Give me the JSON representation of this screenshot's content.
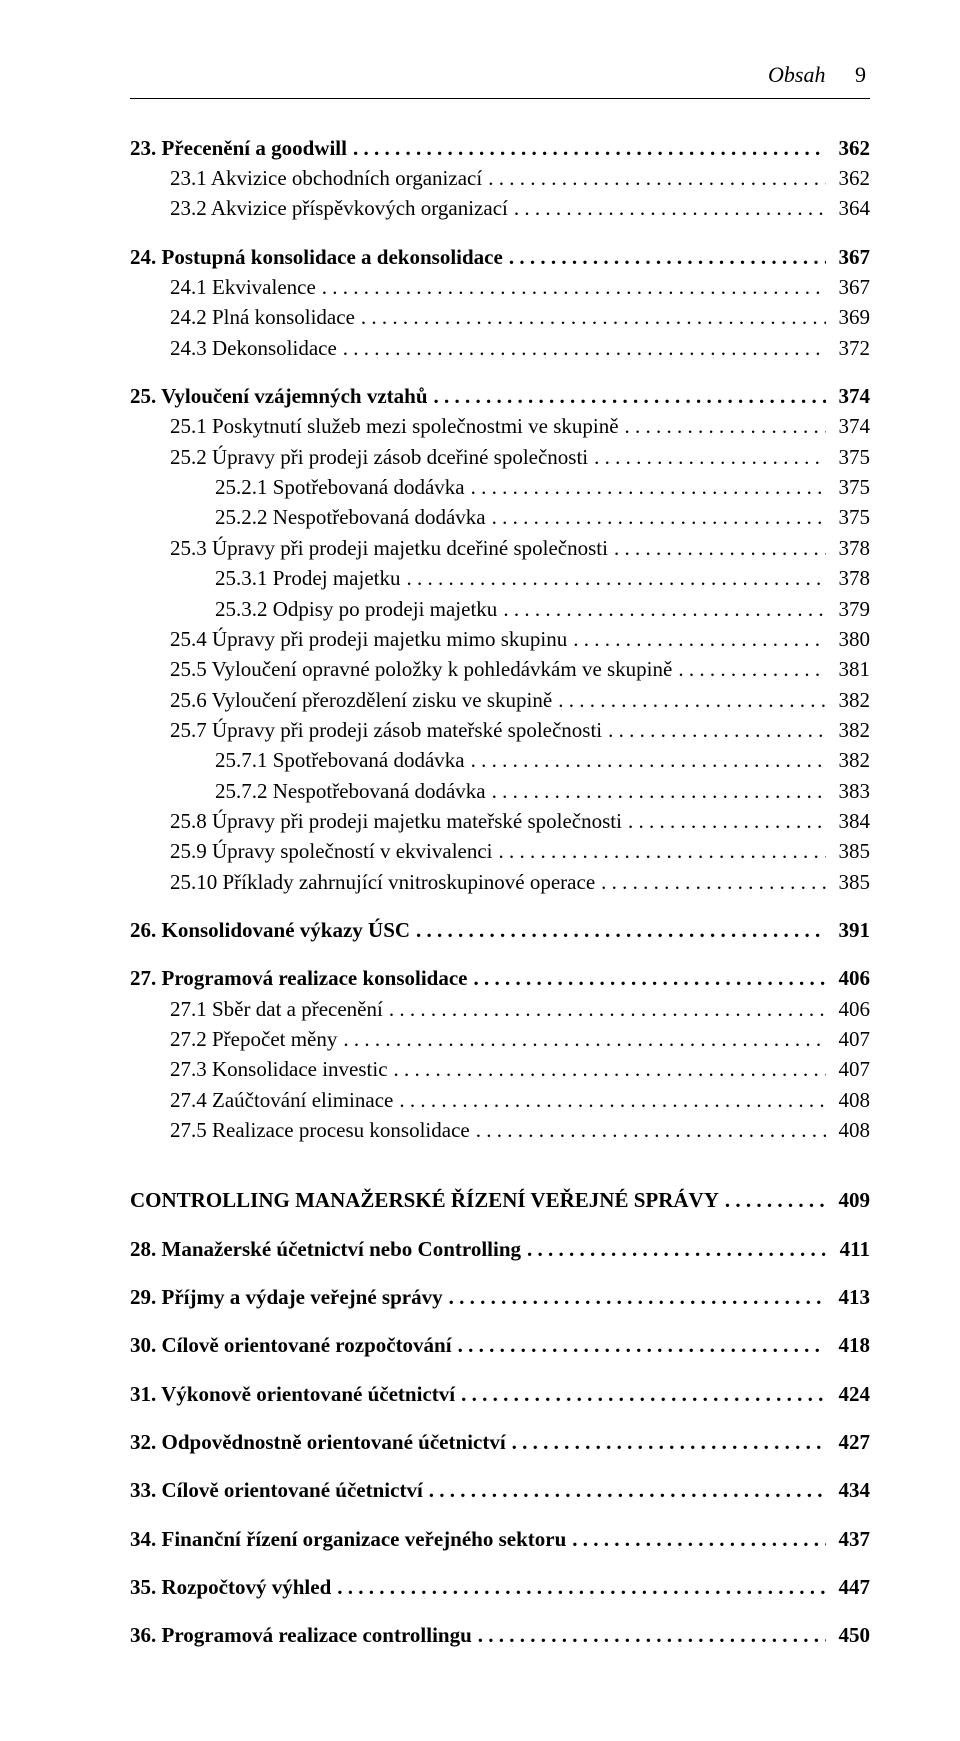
{
  "running_head": {
    "title": "Obsah",
    "page": "9"
  },
  "entries": [
    {
      "label": "23. Přecenění a goodwill",
      "page": "362",
      "level": 0,
      "bold": true,
      "skipBefore": false
    },
    {
      "label": "23.1 Akvizice obchodních organizací",
      "page": "362",
      "level": 1,
      "bold": false,
      "skipBefore": false
    },
    {
      "label": "23.2 Akvizice příspěvkových organizací",
      "page": "364",
      "level": 1,
      "bold": false,
      "skipBefore": false
    },
    {
      "label": "24. Postupná konsolidace a dekonsolidace",
      "page": "367",
      "level": 0,
      "bold": true,
      "skipBefore": true
    },
    {
      "label": "24.1 Ekvivalence",
      "page": "367",
      "level": 1,
      "bold": false,
      "skipBefore": false
    },
    {
      "label": "24.2 Plná konsolidace",
      "page": "369",
      "level": 1,
      "bold": false,
      "skipBefore": false
    },
    {
      "label": "24.3 Dekonsolidace",
      "page": "372",
      "level": 1,
      "bold": false,
      "skipBefore": false
    },
    {
      "label": "25. Vyloučení vzájemných vztahů",
      "page": "374",
      "level": 0,
      "bold": true,
      "skipBefore": true
    },
    {
      "label": "25.1 Poskytnutí služeb mezi společnostmi ve skupině",
      "page": "374",
      "level": 1,
      "bold": false,
      "skipBefore": false
    },
    {
      "label": "25.2 Úpravy při prodeji zásob dceřiné společnosti",
      "page": "375",
      "level": 1,
      "bold": false,
      "skipBefore": false
    },
    {
      "label": "25.2.1 Spotřebovaná dodávka",
      "page": "375",
      "level": 2,
      "bold": false,
      "skipBefore": false
    },
    {
      "label": "25.2.2 Nespotřebovaná dodávka",
      "page": "375",
      "level": 2,
      "bold": false,
      "skipBefore": false
    },
    {
      "label": "25.3 Úpravy při prodeji majetku dceřiné společnosti",
      "page": "378",
      "level": 1,
      "bold": false,
      "skipBefore": false
    },
    {
      "label": "25.3.1 Prodej majetku",
      "page": "378",
      "level": 2,
      "bold": false,
      "skipBefore": false
    },
    {
      "label": "25.3.2 Odpisy po prodeji majetku",
      "page": "379",
      "level": 2,
      "bold": false,
      "skipBefore": false
    },
    {
      "label": "25.4 Úpravy při prodeji majetku mimo skupinu",
      "page": "380",
      "level": 1,
      "bold": false,
      "skipBefore": false
    },
    {
      "label": "25.5 Vyloučení opravné položky k pohledávkám ve skupině",
      "page": "381",
      "level": 1,
      "bold": false,
      "skipBefore": false
    },
    {
      "label": "25.6 Vyloučení přerozdělení zisku ve skupině",
      "page": "382",
      "level": 1,
      "bold": false,
      "skipBefore": false
    },
    {
      "label": "25.7 Úpravy při prodeji zásob mateřské společnosti",
      "page": "382",
      "level": 1,
      "bold": false,
      "skipBefore": false
    },
    {
      "label": "25.7.1 Spotřebovaná dodávka",
      "page": "382",
      "level": 2,
      "bold": false,
      "skipBefore": false
    },
    {
      "label": "25.7.2 Nespotřebovaná dodávka",
      "page": "383",
      "level": 2,
      "bold": false,
      "skipBefore": false
    },
    {
      "label": "25.8 Úpravy při prodeji majetku mateřské společnosti",
      "page": "384",
      "level": 1,
      "bold": false,
      "skipBefore": false
    },
    {
      "label": "25.9 Úpravy společností v ekvivalenci",
      "page": "385",
      "level": 1,
      "bold": false,
      "skipBefore": false
    },
    {
      "label": "25.10 Příklady zahrnující vnitroskupinové operace",
      "page": "385",
      "level": 1,
      "bold": false,
      "skipBefore": false
    },
    {
      "label": "26. Konsolidované výkazy ÚSC",
      "page": "391",
      "level": 0,
      "bold": true,
      "skipBefore": true
    },
    {
      "label": "27. Programová realizace konsolidace",
      "page": "406",
      "level": 0,
      "bold": true,
      "skipBefore": true
    },
    {
      "label": "27.1 Sběr dat a přecenění",
      "page": "406",
      "level": 1,
      "bold": false,
      "skipBefore": false
    },
    {
      "label": "27.2 Přepočet měny",
      "page": "407",
      "level": 1,
      "bold": false,
      "skipBefore": false
    },
    {
      "label": "27.3 Konsolidace investic",
      "page": "407",
      "level": 1,
      "bold": false,
      "skipBefore": false
    },
    {
      "label": "27.4 Zaúčtování eliminace",
      "page": "408",
      "level": 1,
      "bold": false,
      "skipBefore": false
    },
    {
      "label": "27.5 Realizace procesu konsolidace",
      "page": "408",
      "level": 1,
      "bold": false,
      "skipBefore": false
    },
    {
      "label": "CONTROLLING MANAŽERSKÉ ŘÍZENÍ VEŘEJNÉ SPRÁVY",
      "page": "409",
      "level": 0,
      "bold": true,
      "skipBefore": true,
      "bigSkip": true
    },
    {
      "label": "28. Manažerské účetnictví nebo Controlling",
      "page": "411",
      "level": 0,
      "bold": true,
      "skipBefore": true
    },
    {
      "label": "29. Příjmy a výdaje veřejné správy",
      "page": "413",
      "level": 0,
      "bold": true,
      "skipBefore": true
    },
    {
      "label": "30. Cílově orientované rozpočtování",
      "page": "418",
      "level": 0,
      "bold": true,
      "skipBefore": true
    },
    {
      "label": "31. Výkonově orientované účetnictví",
      "page": "424",
      "level": 0,
      "bold": true,
      "skipBefore": true
    },
    {
      "label": "32. Odpovědnostně orientované účetnictví",
      "page": "427",
      "level": 0,
      "bold": true,
      "skipBefore": true
    },
    {
      "label": "33. Cílově orientované účetnictví",
      "page": "434",
      "level": 0,
      "bold": true,
      "skipBefore": true
    },
    {
      "label": "34. Finanční řízení organizace veřejného sektoru",
      "page": "437",
      "level": 0,
      "bold": true,
      "skipBefore": true
    },
    {
      "label": "35. Rozpočtový výhled",
      "page": "447",
      "level": 0,
      "bold": true,
      "skipBefore": true
    },
    {
      "label": "36. Programová realizace controllingu",
      "page": "450",
      "level": 0,
      "bold": true,
      "skipBefore": true
    }
  ]
}
